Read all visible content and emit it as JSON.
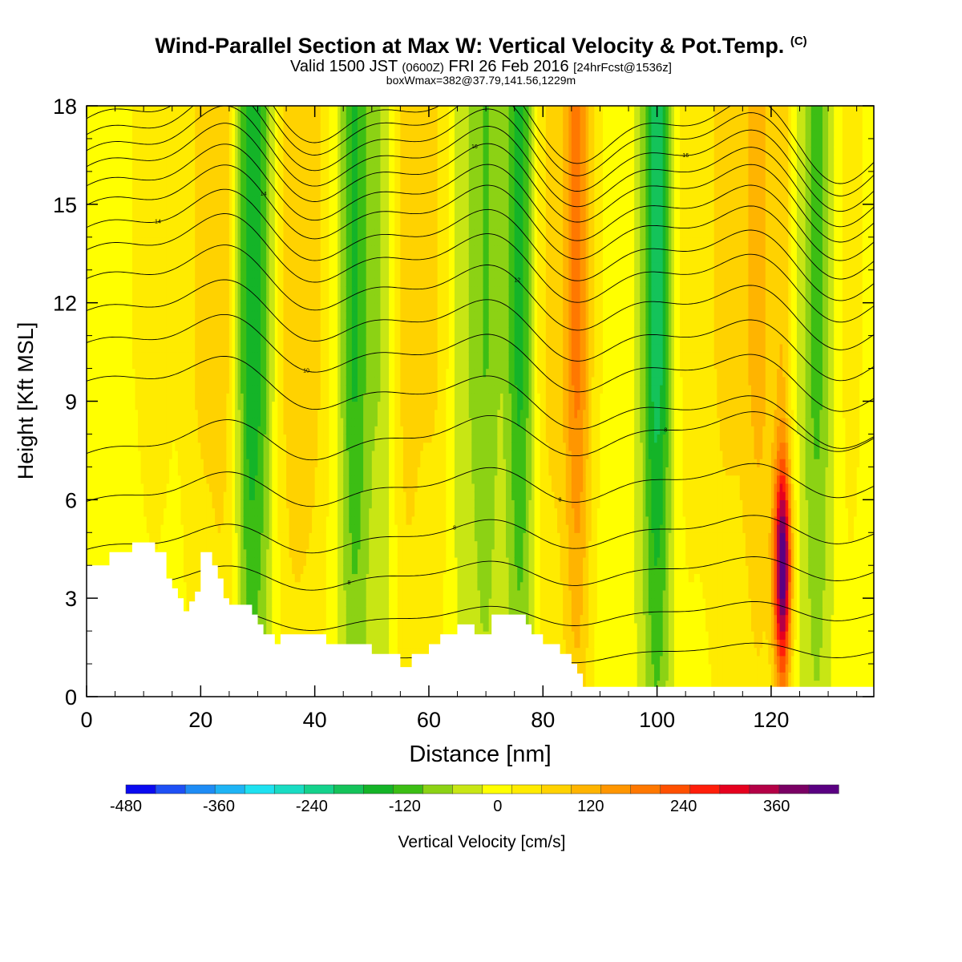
{
  "header": {
    "title": "Wind-Parallel Section at Max W: Vertical Velocity & Pot.Temp.",
    "title_mark": "(C)",
    "valid_prefix": "Valid 1500 JST",
    "valid_z": "(0600Z)",
    "valid_date": "FRI 26 Feb 2016",
    "forecast": "[24hrFcst@1536z]",
    "box_info": "boxWmax=382@37.79,141.56,1229m"
  },
  "chart_data": {
    "type": "heatmap",
    "xlabel": "Distance [nm]",
    "ylabel": "Height [Kft MSL]",
    "xlim": [
      0,
      138
    ],
    "ylim": [
      0,
      18
    ],
    "x_ticks": [
      "0",
      "20",
      "40",
      "60",
      "80",
      "100",
      "120"
    ],
    "x_tick_values": [
      0,
      20,
      40,
      60,
      80,
      100,
      120
    ],
    "y_ticks": [
      "0",
      "3",
      "6",
      "9",
      "12",
      "15",
      "18"
    ],
    "y_tick_values": [
      0,
      3,
      6,
      9,
      12,
      15,
      18
    ],
    "colorbar": {
      "label": "Vertical Velocity [cm/s]",
      "tick_labels": [
        "-480",
        "-360",
        "-240",
        "-120",
        "0",
        "120",
        "240",
        "360"
      ],
      "tick_values": [
        -480,
        -360,
        -240,
        -120,
        0,
        120,
        240,
        360
      ],
      "min": -480,
      "max": 440,
      "step": 40,
      "colors": [
        "#0a0af0",
        "#1e50f5",
        "#1e8cf5",
        "#1eb4f5",
        "#1ee1f0",
        "#19dcc3",
        "#14d28c",
        "#14c35a",
        "#14b428",
        "#3cbe14",
        "#8cd214",
        "#c8e614",
        "#ffff00",
        "#ffeb00",
        "#ffd200",
        "#ffb400",
        "#ff9600",
        "#ff7800",
        "#ff5000",
        "#ff1e0a",
        "#e6001e",
        "#b40046",
        "#7a0064",
        "#5a0082"
      ]
    },
    "max_w": {
      "distance": 122,
      "height_kft": 4.0,
      "value_cms": 382
    },
    "velocity_bands": [
      {
        "center": 2,
        "width": 5,
        "value": 25
      },
      {
        "center": 12,
        "width": 5,
        "value": 40
      },
      {
        "center": 20,
        "width": 3,
        "value": 70
      },
      {
        "center": 24,
        "width": 2.5,
        "value": 80
      },
      {
        "center": 28.5,
        "width": 2.2,
        "value": -150
      },
      {
        "center": 31,
        "width": 2,
        "value": -80
      },
      {
        "center": 36,
        "width": 3,
        "value": 90
      },
      {
        "center": 40,
        "width": 3,
        "value": 70
      },
      {
        "center": 47,
        "width": 2.5,
        "value": -140
      },
      {
        "center": 52,
        "width": 2.5,
        "value": -60
      },
      {
        "center": 56,
        "width": 3,
        "value": 90
      },
      {
        "center": 61,
        "width": 3,
        "value": 70
      },
      {
        "center": 66,
        "width": 2.5,
        "value": -40
      },
      {
        "center": 70,
        "width": 2.5,
        "value": -90
      },
      {
        "center": 76,
        "width": 2.5,
        "value": -150
      },
      {
        "center": 81,
        "width": 3,
        "value": 80
      },
      {
        "center": 86,
        "width": 2.5,
        "value": 200
      },
      {
        "center": 91,
        "width": 2.5,
        "value": 20
      },
      {
        "center": 100,
        "width": 2.5,
        "value": -200
      },
      {
        "center": 105,
        "width": 3,
        "value": 40
      },
      {
        "center": 112,
        "width": 4,
        "value": 80
      },
      {
        "center": 118,
        "width": 3,
        "value": 120
      },
      {
        "center": 122,
        "width": 1.5,
        "value": 382
      },
      {
        "center": 128,
        "width": 2.5,
        "value": -110
      },
      {
        "center": 134,
        "width": 3,
        "value": 40
      }
    ],
    "theta_levels": [
      {
        "base_kft": 1.2,
        "label": ""
      },
      {
        "base_kft": 2.4,
        "label": "8"
      },
      {
        "base_kft": 3.7,
        "label": "8"
      },
      {
        "base_kft": 4.9,
        "label": "8"
      },
      {
        "base_kft": 6.4,
        "label": "8"
      },
      {
        "base_kft": 7.9,
        "label": "8"
      },
      {
        "base_kft": 9.2,
        "label": ""
      },
      {
        "base_kft": 10.4,
        "label": "10"
      },
      {
        "base_kft": 11.4,
        "label": ""
      },
      {
        "base_kft": 12.4,
        "label": "12"
      },
      {
        "base_kft": 13.3,
        "label": ""
      },
      {
        "base_kft": 14.0,
        "label": "14"
      },
      {
        "base_kft": 14.7,
        "label": "14"
      },
      {
        "base_kft": 15.3,
        "label": ""
      },
      {
        "base_kft": 15.9,
        "label": "16"
      },
      {
        "base_kft": 16.4,
        "label": ""
      },
      {
        "base_kft": 16.9,
        "label": "16"
      },
      {
        "base_kft": 17.4,
        "label": ""
      },
      {
        "base_kft": 17.8,
        "label": ""
      }
    ],
    "terrain": [
      [
        0,
        4.0
      ],
      [
        4,
        4.0
      ],
      [
        4,
        4.4
      ],
      [
        8,
        4.4
      ],
      [
        8,
        4.7
      ],
      [
        12,
        4.7
      ],
      [
        12,
        4.4
      ],
      [
        14,
        4.4
      ],
      [
        14,
        3.6
      ],
      [
        15,
        3.6
      ],
      [
        15,
        3.3
      ],
      [
        16,
        3.3
      ],
      [
        16,
        3.0
      ],
      [
        17,
        3.0
      ],
      [
        17,
        2.6
      ],
      [
        18,
        2.6
      ],
      [
        18,
        2.9
      ],
      [
        19,
        2.9
      ],
      [
        19,
        3.2
      ],
      [
        20,
        3.2
      ],
      [
        20,
        4.4
      ],
      [
        22,
        4.4
      ],
      [
        22,
        4.0
      ],
      [
        23,
        4.0
      ],
      [
        23,
        3.6
      ],
      [
        24,
        3.6
      ],
      [
        24,
        3.0
      ],
      [
        25,
        3.0
      ],
      [
        25,
        2.8
      ],
      [
        29,
        2.8
      ],
      [
        29,
        2.5
      ],
      [
        30,
        2.5
      ],
      [
        30,
        2.2
      ],
      [
        31,
        2.2
      ],
      [
        31,
        1.9
      ],
      [
        33,
        1.9
      ],
      [
        33,
        1.6
      ],
      [
        34,
        1.6
      ],
      [
        34,
        1.9
      ],
      [
        42,
        1.9
      ],
      [
        42,
        1.6
      ],
      [
        50,
        1.6
      ],
      [
        50,
        1.3
      ],
      [
        55,
        1.3
      ],
      [
        55,
        0.9
      ],
      [
        57,
        0.9
      ],
      [
        57,
        1.3
      ],
      [
        60,
        1.3
      ],
      [
        60,
        1.6
      ],
      [
        62,
        1.6
      ],
      [
        62,
        1.9
      ],
      [
        65,
        1.9
      ],
      [
        65,
        2.2
      ],
      [
        68,
        2.2
      ],
      [
        68,
        1.9
      ],
      [
        71,
        1.9
      ],
      [
        71,
        2.5
      ],
      [
        77,
        2.5
      ],
      [
        77,
        2.2
      ],
      [
        78,
        2.2
      ],
      [
        78,
        1.9
      ],
      [
        80,
        1.9
      ],
      [
        80,
        1.6
      ],
      [
        83,
        1.6
      ],
      [
        83,
        1.3
      ],
      [
        85,
        1.3
      ],
      [
        85,
        1.0
      ],
      [
        86,
        1.0
      ],
      [
        86,
        0.7
      ],
      [
        87,
        0.7
      ],
      [
        87,
        0.3
      ],
      [
        138,
        0.3
      ]
    ]
  }
}
